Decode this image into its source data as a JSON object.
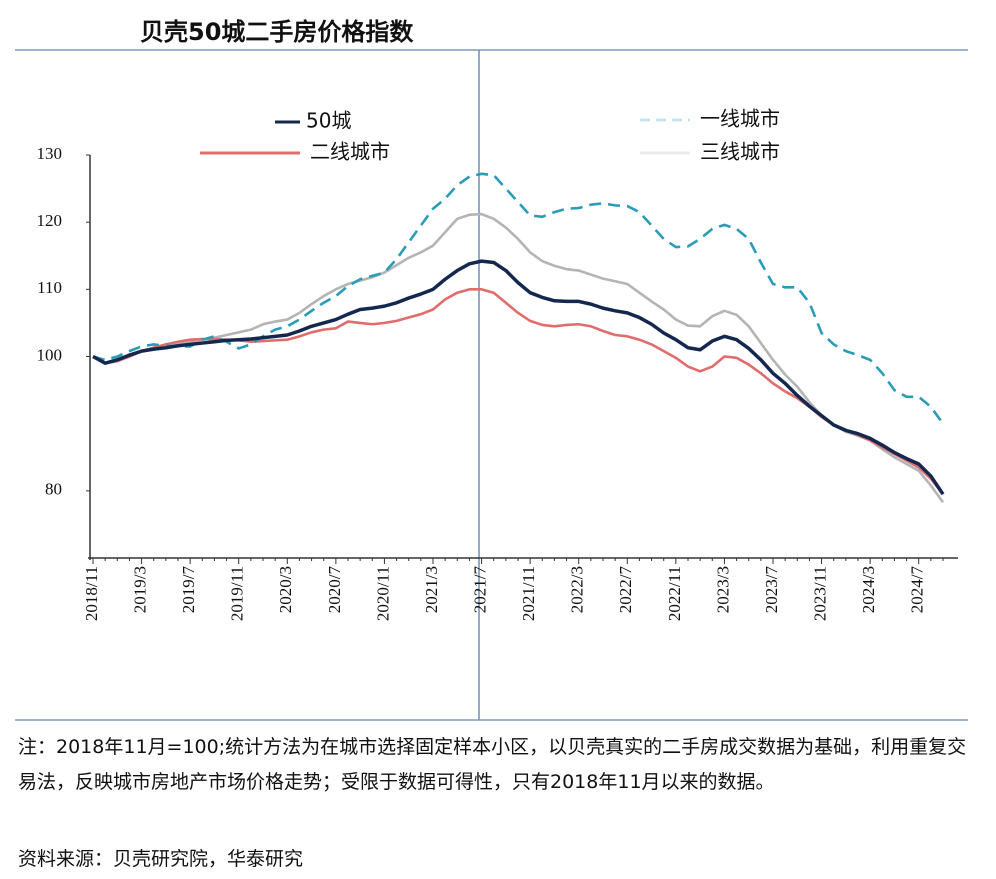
{
  "chart_data": {
    "type": "line",
    "title": "贝壳50城二手房价格指数",
    "categories": [
      "2018/11",
      null,
      null,
      null,
      "2019/3",
      null,
      null,
      null,
      "2019/7",
      null,
      null,
      null,
      "2019/11",
      null,
      null,
      null,
      "2020/3",
      null,
      null,
      null,
      "2020/7",
      null,
      null,
      null,
      "2020/11",
      null,
      null,
      null,
      "2021/3",
      null,
      null,
      null,
      "2021/7",
      null,
      null,
      null,
      "2021/11",
      null,
      null,
      null,
      "2022/3",
      null,
      null,
      null,
      "2022/7",
      null,
      null,
      null,
      "2022/11",
      null,
      null,
      null,
      "2023/3",
      null,
      null,
      null,
      "2023/7",
      null,
      null,
      null,
      "2023/11",
      null,
      null,
      null,
      "2024/3",
      null,
      null,
      null,
      "2024/7",
      null,
      null
    ],
    "series": [
      {
        "name": "50城",
        "color": "#14284f",
        "dashed": false,
        "values": [
          100,
          99,
          99.5,
          100.2,
          100.8,
          101.1,
          101.3,
          101.6,
          101.8,
          102,
          102.2,
          102.4,
          102.5,
          102.6,
          102.8,
          103,
          103.2,
          103.8,
          104.5,
          105,
          105.5,
          106.3,
          107,
          107.2,
          107.5,
          108,
          108.7,
          109.3,
          110,
          111.5,
          112.8,
          113.8,
          114.2,
          114,
          112.8,
          111,
          109.5,
          108.8,
          108.3,
          108.2,
          108.2,
          107.8,
          107.2,
          106.8,
          106.5,
          105.8,
          104.8,
          103.5,
          102.5,
          101.3,
          101,
          102.3,
          103,
          102.5,
          101.2,
          99.5,
          97.5,
          96,
          94.2,
          92.6,
          91.2,
          89.8,
          89,
          88.5,
          87.8,
          86.8,
          85.7,
          84.8,
          84,
          82.2,
          79.5
        ]
      },
      {
        "name": "二线城市",
        "color": "#e06c6c",
        "dashed": false,
        "values": [
          100,
          99,
          99.3,
          100,
          100.8,
          101.3,
          101.8,
          102.2,
          102.5,
          102.6,
          102.6,
          102.5,
          102.4,
          102.2,
          102.3,
          102.4,
          102.5,
          103,
          103.6,
          104,
          104.2,
          105.2,
          105,
          104.8,
          105,
          105.3,
          105.8,
          106.3,
          107,
          108.5,
          109.5,
          110,
          110,
          109.5,
          108,
          106.5,
          105.3,
          104.7,
          104.5,
          104.7,
          104.8,
          104.5,
          103.8,
          103.2,
          103,
          102.5,
          101.8,
          100.8,
          99.8,
          98.5,
          97.8,
          98.5,
          100,
          99.8,
          98.8,
          97.5,
          96,
          94.8,
          93.8,
          92.5,
          91,
          89.8,
          89,
          88.3,
          87.5,
          86.5,
          85.5,
          84.5,
          83.5,
          81.8,
          79.5
        ]
      },
      {
        "name": "一线城市",
        "color": "#2b9cb8",
        "dashed": true,
        "values": [
          100,
          99.5,
          100,
          100.8,
          101.5,
          101.8,
          101.6,
          101.5,
          101.5,
          102.5,
          103,
          102.2,
          101.2,
          101.8,
          103,
          104,
          104.5,
          105.5,
          106.8,
          108,
          109,
          110.5,
          111.5,
          112,
          112.5,
          114.5,
          117,
          119.5,
          122,
          123.5,
          125.5,
          126.8,
          127.2,
          127,
          125,
          123,
          121,
          120.8,
          121.5,
          122,
          122.1,
          122.6,
          122.8,
          122.5,
          122.4,
          121.5,
          119.5,
          117.5,
          116.3,
          116.4,
          117.5,
          119,
          119.6,
          119,
          117.5,
          114,
          110.8,
          110.3,
          110.3,
          108,
          103.5,
          101.8,
          100.8,
          100.2,
          99.5,
          97.5,
          95,
          94,
          94,
          92.5,
          90
        ]
      },
      {
        "name": "三线城市",
        "color": "#b4b4b4",
        "dashed": false,
        "values": [
          100,
          99,
          99.5,
          100.3,
          100.8,
          101.3,
          101.8,
          102,
          102.2,
          102.5,
          102.8,
          103.2,
          103.6,
          104,
          104.8,
          105.2,
          105.5,
          106.5,
          107.8,
          109,
          110,
          110.8,
          111.3,
          111.8,
          112.5,
          113.6,
          114.7,
          115.5,
          116.5,
          118.5,
          120.5,
          121.1,
          121.2,
          120.5,
          119.2,
          117.5,
          115.5,
          114.2,
          113.5,
          113,
          112.8,
          112.2,
          111.6,
          111.2,
          110.8,
          109.5,
          108.2,
          107,
          105.5,
          104.6,
          104.5,
          106,
          106.8,
          106.2,
          104.5,
          102,
          99.5,
          97.3,
          95.5,
          93.2,
          91.2,
          89.8,
          88.8,
          88.2,
          87.5,
          86.2,
          85,
          84,
          83,
          80.8,
          78.3
        ]
      }
    ],
    "ylim": [
      70,
      130
    ],
    "yticks": [
      80,
      100,
      110,
      120,
      130
    ],
    "grid": false,
    "note": "注：2018年11月=100;统计方法为在城市选择固定样本小区，以贝壳真实的二手房成交数据为基础，利用重复交易法，反映城市房地产市场价格走势；受限于数据可得性，只有2018年11月以来的数据。",
    "source": "资料来源：贝壳研究院，华泰研究"
  }
}
